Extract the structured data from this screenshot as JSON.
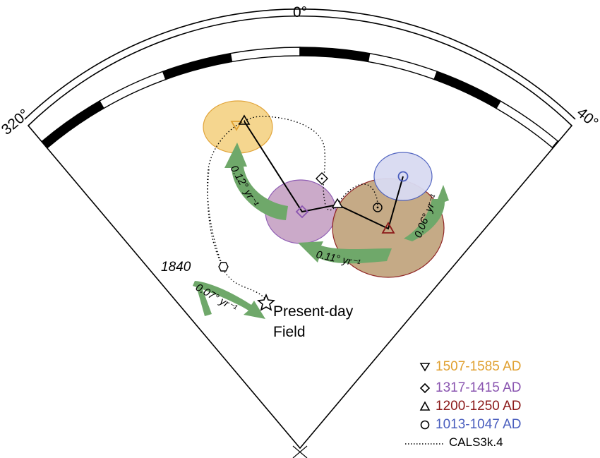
{
  "compass": {
    "labels": [
      {
        "text": "0°"
      },
      {
        "text": "320°"
      },
      {
        "text": "40°"
      }
    ]
  },
  "annotations": {
    "year_1840": "1840",
    "present_day_line1": "Present-day",
    "present_day_line2": "Field"
  },
  "rates": [
    {
      "text": "0.12° yr⁻¹"
    },
    {
      "text": "0.11° yr⁻¹"
    },
    {
      "text": "0.06° yr⁻¹"
    },
    {
      "text": "0.07° yr⁻¹"
    }
  ],
  "legend": [
    {
      "symbol": "triangle-down",
      "label": "1507-1585 AD",
      "color": "#E0A030"
    },
    {
      "symbol": "diamond",
      "label": "1317-1415 AD",
      "color": "#8A55B0"
    },
    {
      "symbol": "triangle-up",
      "label": "1200-1250 AD",
      "color": "#8B1A1A"
    },
    {
      "symbol": "circle",
      "label": "1013-1047 AD",
      "color": "#4A5EBE"
    },
    {
      "symbol": "dotted-line",
      "label": "CALS3k.4",
      "color": "#000000"
    }
  ],
  "colors": {
    "arrow_fill": "#6FA86A",
    "ellipse_orange": "#F5D48A",
    "ellipse_purple": "#C9A6C7",
    "ellipse_brown": "#C2A680",
    "ellipse_blue": "#D9DBF2"
  }
}
